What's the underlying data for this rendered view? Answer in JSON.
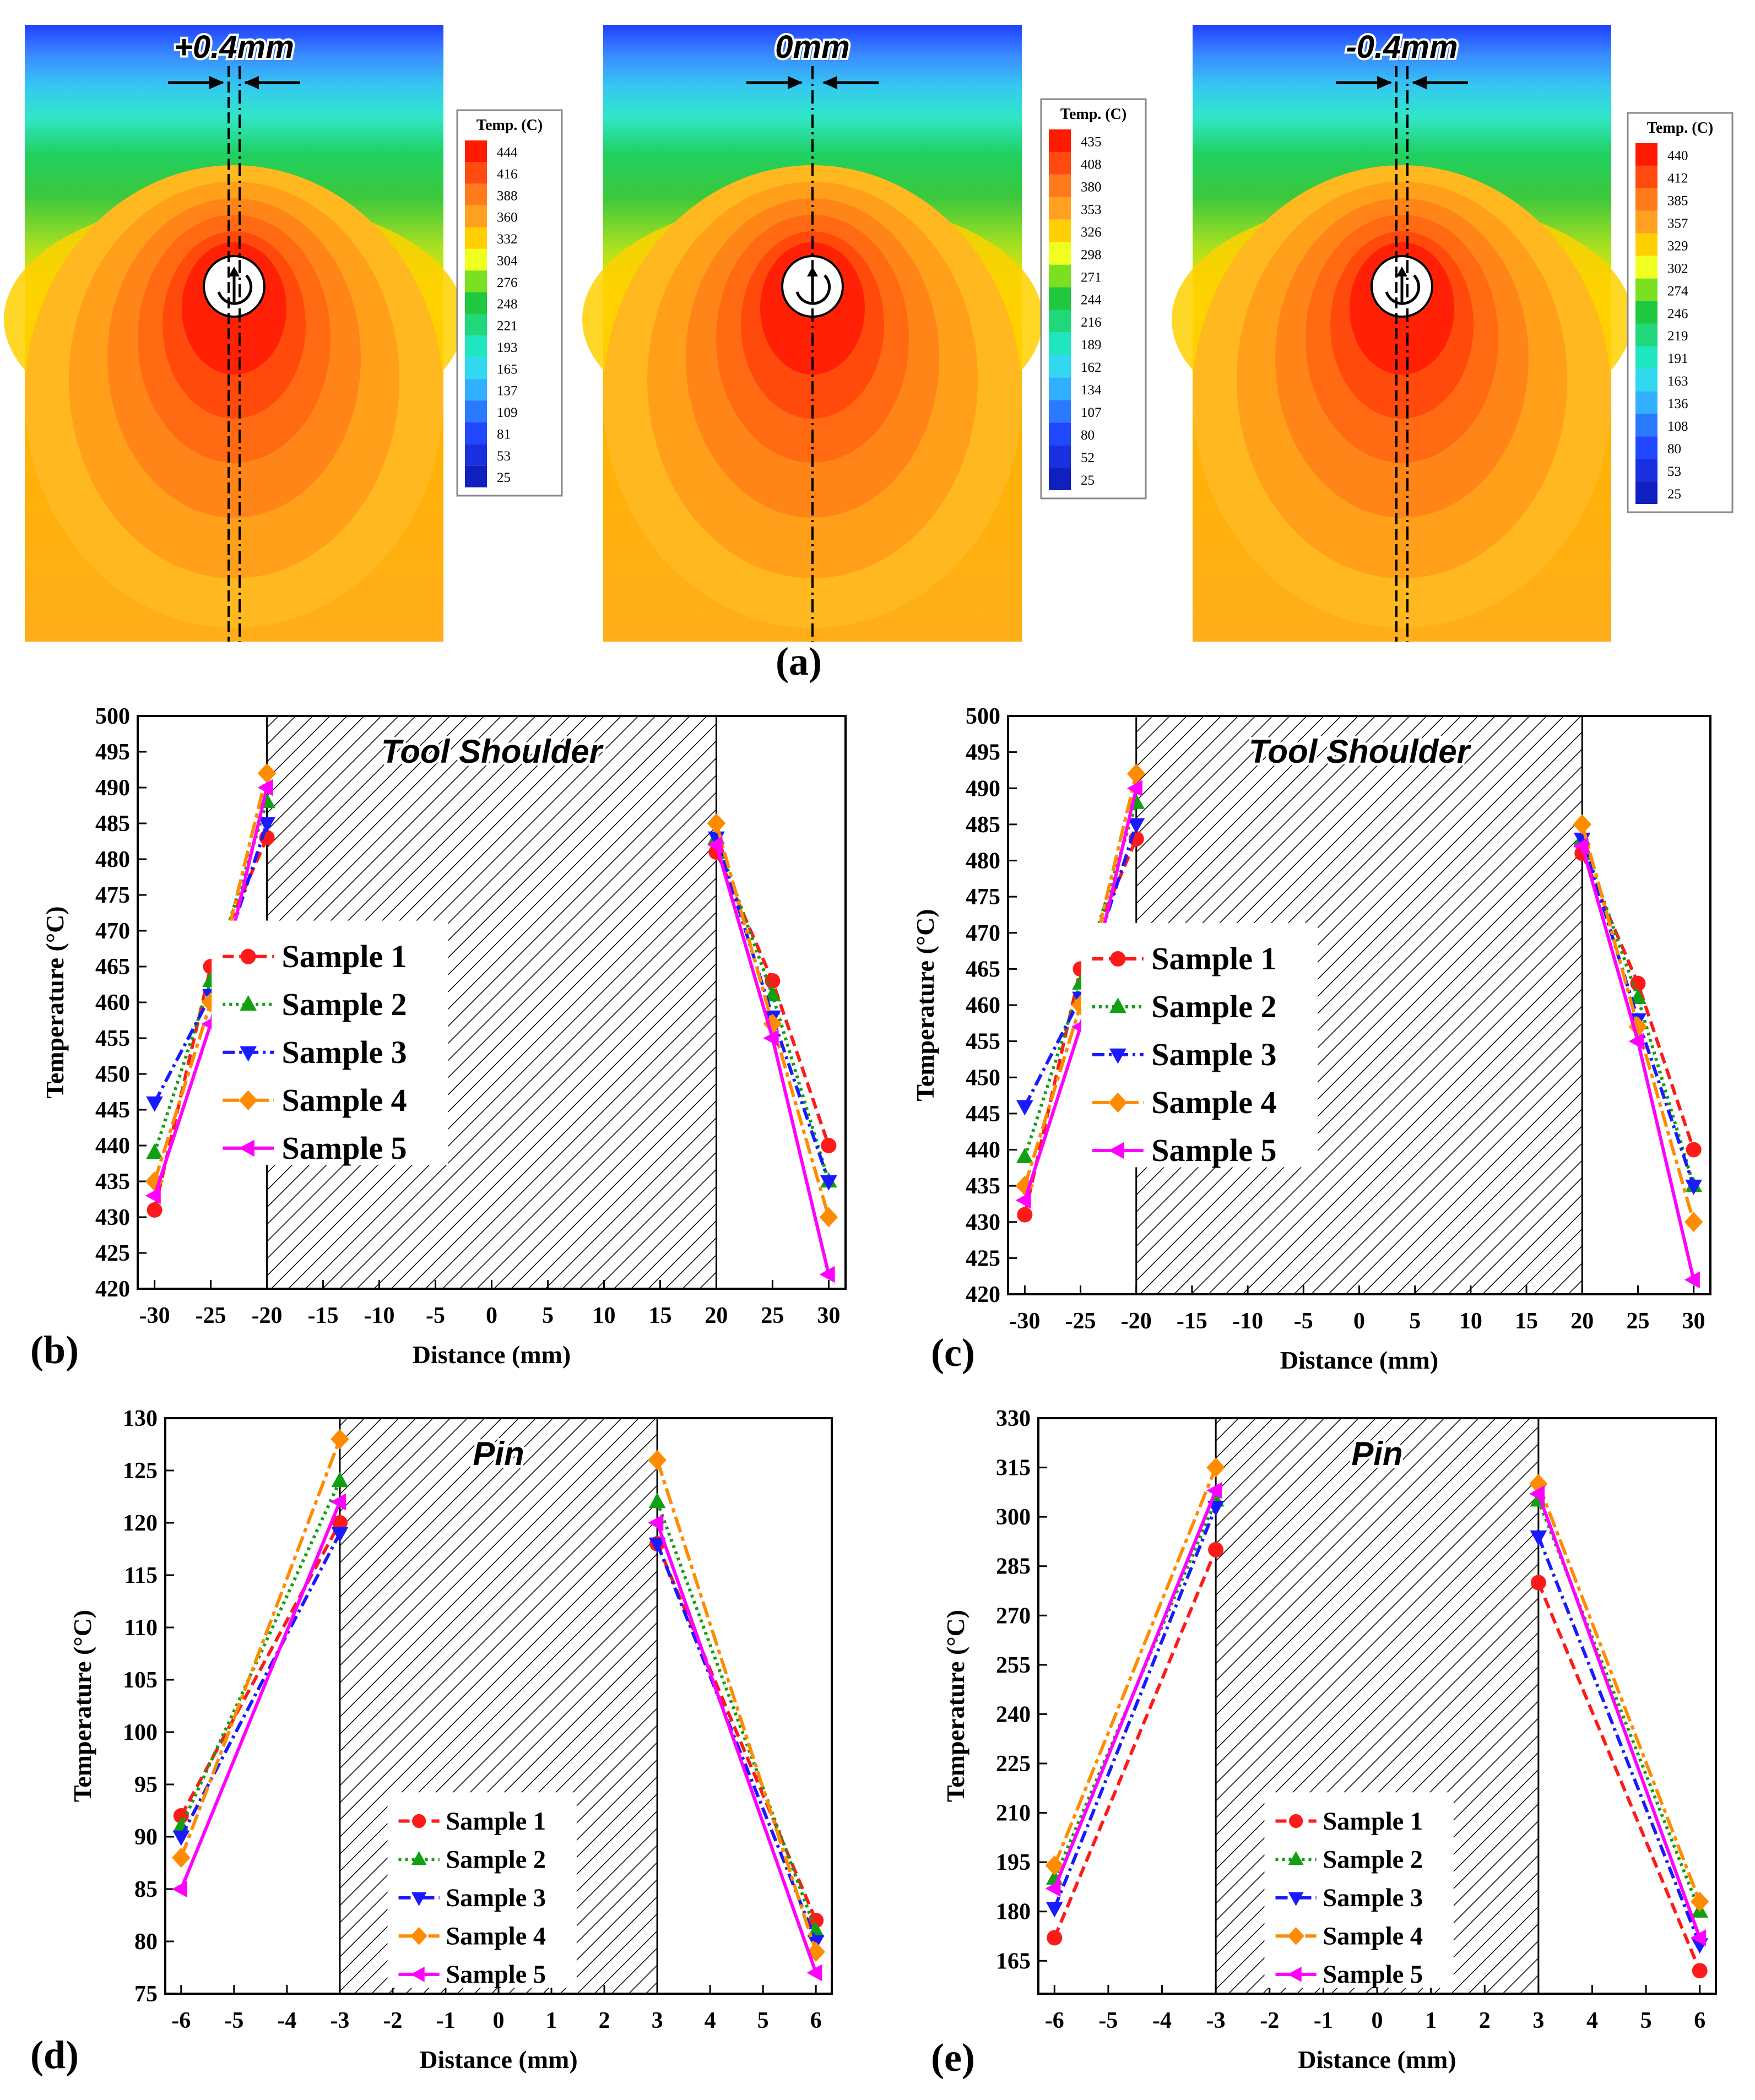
{
  "figure": {
    "panel_a_label": "(a)",
    "panel_labels": [
      "(b)",
      "(c)",
      "(d)",
      "(e)"
    ],
    "colors": {
      "sample1": "#ff1a1a",
      "sample2": "#11a011",
      "sample3": "#1a1aff",
      "sample4": "#ff8c00",
      "sample5": "#ff00ff"
    }
  },
  "contour_maps": [
    {
      "offset_label": "+0.4mm",
      "legend_title": "Temp. (C)",
      "legend_values": [
        "444",
        "416",
        "388",
        "360",
        "332",
        "304",
        "276",
        "248",
        "221",
        "193",
        "165",
        "137",
        "109",
        "81",
        "53",
        "25"
      ]
    },
    {
      "offset_label": "0mm",
      "legend_title": "Temp. (C)",
      "legend_values": [
        "435",
        "408",
        "380",
        "353",
        "326",
        "298",
        "271",
        "244",
        "216",
        "189",
        "162",
        "134",
        "107",
        "80",
        "52",
        "25"
      ]
    },
    {
      "offset_label": "-0.4mm",
      "legend_title": "Temp. (C)",
      "legend_values": [
        "440",
        "412",
        "385",
        "357",
        "329",
        "302",
        "274",
        "246",
        "219",
        "191",
        "163",
        "136",
        "108",
        "80",
        "53",
        "25"
      ]
    }
  ],
  "chart_data": [
    {
      "panel": "(b)",
      "type": "line",
      "title": "",
      "region_label": "Tool Shoulder",
      "shaded_region": [
        -20,
        20
      ],
      "xlabel": "Distance (mm)",
      "ylabel": "Temperature (°C)",
      "xlim": [
        -31.5,
        31.5
      ],
      "ylim": [
        420,
        500
      ],
      "xticks": [
        -30,
        -25,
        -20,
        -15,
        -10,
        -5,
        0,
        5,
        10,
        15,
        20,
        25,
        30
      ],
      "yticks": [
        420,
        425,
        430,
        435,
        440,
        445,
        450,
        455,
        460,
        465,
        470,
        475,
        480,
        485,
        490,
        495,
        500
      ],
      "legend_position": "center-left",
      "legend_font_scale": 1.0,
      "series": [
        {
          "name": "Sample 1",
          "left": {
            "x": [
              -30,
              -25,
              -20
            ],
            "y": [
              431,
              465,
              483
            ]
          },
          "right": {
            "x": [
              20,
              25,
              30
            ],
            "y": [
              481,
              463,
              440
            ]
          }
        },
        {
          "name": "Sample 2",
          "left": {
            "x": [
              -30,
              -25,
              -20
            ],
            "y": [
              439,
              463,
              488
            ]
          },
          "right": {
            "x": [
              20,
              25,
              30
            ],
            "y": [
              483,
              461,
              435
            ]
          }
        },
        {
          "name": "Sample 3",
          "left": {
            "x": [
              -30,
              -25,
              -20
            ],
            "y": [
              446,
              461,
              485
            ]
          },
          "right": {
            "x": [
              20,
              25,
              30
            ],
            "y": [
              483,
              458,
              435
            ]
          }
        },
        {
          "name": "Sample 4",
          "left": {
            "x": [
              -30,
              -25,
              -20
            ],
            "y": [
              435,
              460,
              492
            ]
          },
          "right": {
            "x": [
              20,
              25,
              30
            ],
            "y": [
              485,
              457,
              430
            ]
          }
        },
        {
          "name": "Sample 5",
          "left": {
            "x": [
              -30,
              -25,
              -20
            ],
            "y": [
              433,
              457,
              490
            ]
          },
          "right": {
            "x": [
              20,
              25,
              30
            ],
            "y": [
              482,
              455,
              422
            ]
          }
        }
      ]
    },
    {
      "panel": "(c)",
      "type": "line",
      "title": "",
      "region_label": "Tool Shoulder",
      "shaded_region": [
        -20,
        20
      ],
      "xlabel": "Distance (mm)",
      "ylabel": "Temperature (°C)",
      "xlim": [
        -31.5,
        31.5
      ],
      "ylim": [
        420,
        500
      ],
      "xticks": [
        -30,
        -25,
        -20,
        -15,
        -10,
        -5,
        0,
        5,
        10,
        15,
        20,
        25,
        30
      ],
      "yticks": [
        420,
        425,
        430,
        435,
        440,
        445,
        450,
        455,
        460,
        465,
        470,
        475,
        480,
        485,
        490,
        495,
        500
      ],
      "legend_position": "center-left",
      "legend_font_scale": 1.0,
      "series": [
        {
          "name": "Sample 1",
          "left": {
            "x": [
              -30,
              -25,
              -20
            ],
            "y": [
              431,
              465,
              483
            ]
          },
          "right": {
            "x": [
              20,
              25,
              30
            ],
            "y": [
              481,
              463,
              440
            ]
          }
        },
        {
          "name": "Sample 2",
          "left": {
            "x": [
              -30,
              -25,
              -20
            ],
            "y": [
              439,
              463,
              488
            ]
          },
          "right": {
            "x": [
              20,
              25,
              30
            ],
            "y": [
              483,
              461,
              435
            ]
          }
        },
        {
          "name": "Sample 3",
          "left": {
            "x": [
              -30,
              -25,
              -20
            ],
            "y": [
              446,
              461,
              485
            ]
          },
          "right": {
            "x": [
              20,
              25,
              30
            ],
            "y": [
              483,
              458,
              435
            ]
          }
        },
        {
          "name": "Sample 4",
          "left": {
            "x": [
              -30,
              -25,
              -20
            ],
            "y": [
              435,
              460,
              492
            ]
          },
          "right": {
            "x": [
              20,
              25,
              30
            ],
            "y": [
              485,
              457,
              430
            ]
          }
        },
        {
          "name": "Sample 5",
          "left": {
            "x": [
              -30,
              -25,
              -20
            ],
            "y": [
              433,
              457,
              490
            ]
          },
          "right": {
            "x": [
              20,
              25,
              30
            ],
            "y": [
              482,
              455,
              422
            ]
          }
        }
      ]
    },
    {
      "panel": "(d)",
      "type": "line",
      "title": "",
      "region_label": "Pin",
      "shaded_region": [
        -3,
        3
      ],
      "xlabel": "Distance (mm)",
      "ylabel": "Temperature (°C)",
      "xlim": [
        -6.3,
        6.3
      ],
      "ylim": [
        75,
        130
      ],
      "xticks": [
        -6,
        -5,
        -4,
        -3,
        -2,
        -1,
        0,
        1,
        2,
        3,
        4,
        5,
        6
      ],
      "yticks": [
        75,
        80,
        85,
        90,
        95,
        100,
        105,
        110,
        115,
        120,
        125,
        130
      ],
      "legend_position": "lower-center",
      "legend_font_scale": 0.8,
      "series": [
        {
          "name": "Sample 1",
          "left": {
            "x": [
              -6,
              -3
            ],
            "y": [
              92,
              120
            ]
          },
          "right": {
            "x": [
              3,
              6
            ],
            "y": [
              118,
              82
            ]
          }
        },
        {
          "name": "Sample 2",
          "left": {
            "x": [
              -6,
              -3
            ],
            "y": [
              91,
              124
            ]
          },
          "right": {
            "x": [
              3,
              6
            ],
            "y": [
              122,
              81
            ]
          }
        },
        {
          "name": "Sample 3",
          "left": {
            "x": [
              -6,
              -3
            ],
            "y": [
              90,
              119
            ]
          },
          "right": {
            "x": [
              3,
              6
            ],
            "y": [
              118,
              80
            ]
          }
        },
        {
          "name": "Sample 4",
          "left": {
            "x": [
              -6,
              -3
            ],
            "y": [
              88,
              128
            ]
          },
          "right": {
            "x": [
              3,
              6
            ],
            "y": [
              126,
              79
            ]
          }
        },
        {
          "name": "Sample 5",
          "left": {
            "x": [
              -6,
              -3
            ],
            "y": [
              85,
              122
            ]
          },
          "right": {
            "x": [
              3,
              6
            ],
            "y": [
              120,
              77
            ]
          }
        }
      ]
    },
    {
      "panel": "(e)",
      "type": "line",
      "title": "",
      "region_label": "Pin",
      "shaded_region": [
        -3,
        3
      ],
      "xlabel": "Distance (mm)",
      "ylabel": "Temperature (°C)",
      "xlim": [
        -6.3,
        6.3
      ],
      "ylim": [
        155,
        330
      ],
      "xticks": [
        -6,
        -5,
        -4,
        -3,
        -2,
        -1,
        0,
        1,
        2,
        3,
        4,
        5,
        6
      ],
      "yticks": [
        165,
        180,
        195,
        210,
        225,
        240,
        255,
        270,
        285,
        300,
        315,
        330
      ],
      "legend_position": "lower-center",
      "legend_font_scale": 0.8,
      "series": [
        {
          "name": "Sample 1",
          "left": {
            "x": [
              -6,
              -3
            ],
            "y": [
              172,
              290
            ]
          },
          "right": {
            "x": [
              3,
              6
            ],
            "y": [
              280,
              162
            ]
          }
        },
        {
          "name": "Sample 2",
          "left": {
            "x": [
              -6,
              -3
            ],
            "y": [
              190,
              305
            ]
          },
          "right": {
            "x": [
              3,
              6
            ],
            "y": [
              305,
              180
            ]
          }
        },
        {
          "name": "Sample 3",
          "left": {
            "x": [
              -6,
              -3
            ],
            "y": [
              181,
              303
            ]
          },
          "right": {
            "x": [
              3,
              6
            ],
            "y": [
              294,
              170
            ]
          }
        },
        {
          "name": "Sample 4",
          "left": {
            "x": [
              -6,
              -3
            ],
            "y": [
              194,
              315
            ]
          },
          "right": {
            "x": [
              3,
              6
            ],
            "y": [
              310,
              183
            ]
          }
        },
        {
          "name": "Sample 5",
          "left": {
            "x": [
              -6,
              -3
            ],
            "y": [
              187,
              308
            ]
          },
          "right": {
            "x": [
              3,
              6
            ],
            "y": [
              307,
              172
            ]
          }
        }
      ]
    }
  ]
}
